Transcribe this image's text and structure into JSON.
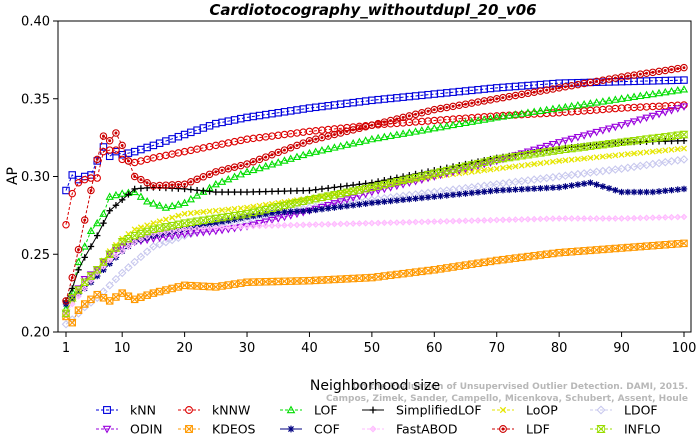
{
  "chart_data": {
    "type": "line",
    "title": "Cardiotocography_withoutdupl_20_v06",
    "xlabel": "Neighborhood size",
    "ylabel": "AP",
    "xlim": [
      1,
      100
    ],
    "ylim": [
      0.2,
      0.4
    ],
    "xticks": [
      "1",
      "10",
      "20",
      "30",
      "40",
      "50",
      "60",
      "70",
      "80",
      "90",
      "100"
    ],
    "yticks": [
      "0.20",
      "0.25",
      "0.30",
      "0.35",
      "0.40"
    ],
    "legend_position": "bottom",
    "watermark": [
      "Campos, Zimek, Sander, Campello, Micenkova, Schubert, Assent, Houle",
      "On the Evaluation of Unsupervised Outlier Detection. DAMI, 2015."
    ],
    "series": [
      {
        "name": "kNN",
        "color": "#0000dd",
        "marker": "square",
        "points": [
          [
            1,
            0.291
          ],
          [
            2,
            0.301
          ],
          [
            3,
            0.298
          ],
          [
            4,
            0.3
          ],
          [
            5,
            0.301
          ],
          [
            6,
            0.31
          ],
          [
            7,
            0.319
          ],
          [
            8,
            0.313
          ],
          [
            9,
            0.316
          ],
          [
            10,
            0.314
          ],
          [
            12,
            0.316
          ],
          [
            15,
            0.32
          ],
          [
            20,
            0.327
          ],
          [
            25,
            0.334
          ],
          [
            30,
            0.338
          ],
          [
            40,
            0.344
          ],
          [
            50,
            0.349
          ],
          [
            60,
            0.353
          ],
          [
            70,
            0.357
          ],
          [
            80,
            0.36
          ],
          [
            90,
            0.361
          ],
          [
            100,
            0.362
          ]
        ]
      },
      {
        "name": "kNNW",
        "color": "#dd0000",
        "marker": "circle",
        "points": [
          [
            1,
            0.269
          ],
          [
            2,
            0.289
          ],
          [
            3,
            0.296
          ],
          [
            4,
            0.298
          ],
          [
            5,
            0.299
          ],
          [
            6,
            0.299
          ],
          [
            7,
            0.316
          ],
          [
            8,
            0.317
          ],
          [
            9,
            0.317
          ],
          [
            10,
            0.311
          ],
          [
            12,
            0.309
          ],
          [
            15,
            0.312
          ],
          [
            20,
            0.316
          ],
          [
            25,
            0.32
          ],
          [
            30,
            0.324
          ],
          [
            40,
            0.329
          ],
          [
            50,
            0.333
          ],
          [
            60,
            0.336
          ],
          [
            70,
            0.339
          ],
          [
            80,
            0.341
          ],
          [
            90,
            0.344
          ],
          [
            100,
            0.346
          ]
        ]
      },
      {
        "name": "LOF",
        "color": "#00dd00",
        "marker": "triangle",
        "points": [
          [
            1,
            0.215
          ],
          [
            2,
            0.226
          ],
          [
            3,
            0.245
          ],
          [
            4,
            0.255
          ],
          [
            5,
            0.265
          ],
          [
            6,
            0.27
          ],
          [
            7,
            0.276
          ],
          [
            8,
            0.287
          ],
          [
            10,
            0.289
          ],
          [
            12,
            0.29
          ],
          [
            14,
            0.284
          ],
          [
            17,
            0.28
          ],
          [
            20,
            0.283
          ],
          [
            25,
            0.295
          ],
          [
            30,
            0.303
          ],
          [
            40,
            0.315
          ],
          [
            50,
            0.324
          ],
          [
            60,
            0.331
          ],
          [
            70,
            0.338
          ],
          [
            80,
            0.344
          ],
          [
            90,
            0.35
          ],
          [
            100,
            0.356
          ]
        ]
      },
      {
        "name": "SimplifiedLOF",
        "color": "#000000",
        "marker": "plus",
        "points": [
          [
            1,
            0.22
          ],
          [
            2,
            0.228
          ],
          [
            3,
            0.24
          ],
          [
            4,
            0.248
          ],
          [
            5,
            0.255
          ],
          [
            6,
            0.262
          ],
          [
            7,
            0.27
          ],
          [
            8,
            0.278
          ],
          [
            10,
            0.285
          ],
          [
            12,
            0.292
          ],
          [
            15,
            0.293
          ],
          [
            20,
            0.292
          ],
          [
            25,
            0.29
          ],
          [
            30,
            0.29
          ],
          [
            40,
            0.291
          ],
          [
            50,
            0.296
          ],
          [
            60,
            0.304
          ],
          [
            70,
            0.312
          ],
          [
            80,
            0.318
          ],
          [
            90,
            0.322
          ],
          [
            100,
            0.323
          ]
        ]
      },
      {
        "name": "LoOP",
        "color": "#e6e600",
        "marker": "x",
        "points": [
          [
            1,
            0.213
          ],
          [
            2,
            0.22
          ],
          [
            4,
            0.232
          ],
          [
            6,
            0.24
          ],
          [
            8,
            0.252
          ],
          [
            10,
            0.26
          ],
          [
            12,
            0.266
          ],
          [
            15,
            0.27
          ],
          [
            20,
            0.276
          ],
          [
            25,
            0.278
          ],
          [
            30,
            0.28
          ],
          [
            40,
            0.286
          ],
          [
            50,
            0.293
          ],
          [
            60,
            0.3
          ],
          [
            70,
            0.305
          ],
          [
            80,
            0.31
          ],
          [
            90,
            0.314
          ],
          [
            100,
            0.318
          ]
        ]
      },
      {
        "name": "LDOF",
        "color": "#c8c8ee",
        "marker": "diamond",
        "points": [
          [
            1,
            0.205
          ],
          [
            2,
            0.208
          ],
          [
            4,
            0.216
          ],
          [
            6,
            0.222
          ],
          [
            8,
            0.23
          ],
          [
            10,
            0.238
          ],
          [
            12,
            0.245
          ],
          [
            15,
            0.255
          ],
          [
            20,
            0.262
          ],
          [
            25,
            0.268
          ],
          [
            30,
            0.272
          ],
          [
            40,
            0.28
          ],
          [
            50,
            0.285
          ],
          [
            60,
            0.29
          ],
          [
            70,
            0.295
          ],
          [
            80,
            0.3
          ],
          [
            90,
            0.305
          ],
          [
            100,
            0.311
          ]
        ]
      },
      {
        "name": "ODIN",
        "color": "#9900dd",
        "marker": "triangle-down",
        "points": [
          [
            1,
            0.212
          ],
          [
            2,
            0.222
          ],
          [
            3,
            0.228
          ],
          [
            4,
            0.234
          ],
          [
            6,
            0.24
          ],
          [
            8,
            0.25
          ],
          [
            10,
            0.255
          ],
          [
            12,
            0.258
          ],
          [
            15,
            0.26
          ],
          [
            20,
            0.263
          ],
          [
            25,
            0.265
          ],
          [
            30,
            0.268
          ],
          [
            40,
            0.278
          ],
          [
            50,
            0.29
          ],
          [
            60,
            0.3
          ],
          [
            70,
            0.31
          ],
          [
            80,
            0.322
          ],
          [
            90,
            0.333
          ],
          [
            100,
            0.345
          ]
        ]
      },
      {
        "name": "KDEOS",
        "color": "#ff9900",
        "marker": "square-x",
        "points": [
          [
            1,
            0.21
          ],
          [
            2,
            0.206
          ],
          [
            3,
            0.214
          ],
          [
            4,
            0.218
          ],
          [
            6,
            0.224
          ],
          [
            8,
            0.22
          ],
          [
            10,
            0.225
          ],
          [
            12,
            0.221
          ],
          [
            15,
            0.225
          ],
          [
            20,
            0.23
          ],
          [
            25,
            0.229
          ],
          [
            30,
            0.232
          ],
          [
            40,
            0.233
          ],
          [
            50,
            0.235
          ],
          [
            60,
            0.24
          ],
          [
            70,
            0.246
          ],
          [
            80,
            0.251
          ],
          [
            90,
            0.254
          ],
          [
            100,
            0.257
          ]
        ]
      },
      {
        "name": "COF",
        "color": "#000080",
        "marker": "star",
        "points": [
          [
            1,
            0.218
          ],
          [
            2,
            0.221
          ],
          [
            4,
            0.228
          ],
          [
            6,
            0.236
          ],
          [
            8,
            0.244
          ],
          [
            10,
            0.252
          ],
          [
            12,
            0.258
          ],
          [
            15,
            0.262
          ],
          [
            20,
            0.266
          ],
          [
            25,
            0.27
          ],
          [
            30,
            0.274
          ],
          [
            35,
            0.277
          ],
          [
            40,
            0.278
          ],
          [
            50,
            0.283
          ],
          [
            60,
            0.287
          ],
          [
            70,
            0.291
          ],
          [
            80,
            0.293
          ],
          [
            85,
            0.296
          ],
          [
            90,
            0.29
          ],
          [
            95,
            0.29
          ],
          [
            100,
            0.292
          ]
        ]
      },
      {
        "name": "FastABOD",
        "color": "#ffbbff",
        "marker": "diamond-small",
        "points": [
          [
            1,
            0.212
          ],
          [
            2,
            0.218
          ],
          [
            4,
            0.228
          ],
          [
            6,
            0.238
          ],
          [
            8,
            0.246
          ],
          [
            10,
            0.252
          ],
          [
            12,
            0.258
          ],
          [
            15,
            0.263
          ],
          [
            20,
            0.266
          ],
          [
            25,
            0.267
          ],
          [
            30,
            0.268
          ],
          [
            40,
            0.269
          ],
          [
            50,
            0.27
          ],
          [
            60,
            0.271
          ],
          [
            70,
            0.272
          ],
          [
            80,
            0.273
          ],
          [
            90,
            0.273
          ],
          [
            100,
            0.274
          ]
        ]
      },
      {
        "name": "LDF",
        "color": "#cc0000",
        "marker": "circle-filled",
        "points": [
          [
            1,
            0.22
          ],
          [
            2,
            0.235
          ],
          [
            3,
            0.253
          ],
          [
            4,
            0.272
          ],
          [
            5,
            0.291
          ],
          [
            6,
            0.311
          ],
          [
            7,
            0.326
          ],
          [
            8,
            0.323
          ],
          [
            9,
            0.328
          ],
          [
            10,
            0.32
          ],
          [
            12,
            0.3
          ],
          [
            15,
            0.294
          ],
          [
            20,
            0.295
          ],
          [
            25,
            0.303
          ],
          [
            30,
            0.308
          ],
          [
            40,
            0.323
          ],
          [
            50,
            0.333
          ],
          [
            60,
            0.343
          ],
          [
            70,
            0.35
          ],
          [
            80,
            0.357
          ],
          [
            90,
            0.364
          ],
          [
            100,
            0.37
          ]
        ]
      },
      {
        "name": "INFLO",
        "color": "#99dd00",
        "marker": "hourglass",
        "points": [
          [
            1,
            0.212
          ],
          [
            2,
            0.222
          ],
          [
            4,
            0.232
          ],
          [
            6,
            0.24
          ],
          [
            8,
            0.25
          ],
          [
            10,
            0.258
          ],
          [
            12,
            0.262
          ],
          [
            15,
            0.266
          ],
          [
            20,
            0.27
          ],
          [
            25,
            0.273
          ],
          [
            30,
            0.276
          ],
          [
            40,
            0.285
          ],
          [
            50,
            0.293
          ],
          [
            60,
            0.302
          ],
          [
            70,
            0.311
          ],
          [
            80,
            0.317
          ],
          [
            90,
            0.322
          ],
          [
            100,
            0.327
          ]
        ]
      }
    ],
    "legend_order": [
      "kNN",
      "kNNW",
      "LOF",
      "SimplifiedLOF",
      "LoOP",
      "LDOF",
      "ODIN",
      "KDEOS",
      "COF",
      "FastABOD",
      "LDF",
      "INFLO"
    ]
  }
}
